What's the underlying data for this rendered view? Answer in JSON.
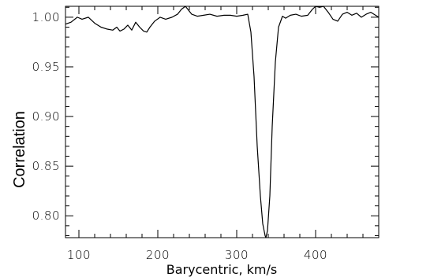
{
  "chart_data": {
    "type": "line",
    "title": "",
    "xlabel": "Barycentric, km/s",
    "ylabel": "Correlation",
    "xlim": [
      83,
      480
    ],
    "ylim": [
      0.778,
      1.011
    ],
    "x_ticks": [
      100,
      200,
      300,
      400
    ],
    "x_tick_labels": [
      "100",
      "200",
      "300",
      "400"
    ],
    "y_ticks": [
      0.8,
      0.85,
      0.9,
      0.95,
      1.0
    ],
    "y_tick_labels": [
      "0.80",
      "0.85",
      "0.90",
      "0.95",
      "1.00"
    ],
    "grid": false,
    "series": [
      {
        "x": [
          83,
          90,
          98,
          104,
          112,
          120,
          128,
          136,
          143,
          148,
          152,
          157,
          162,
          167,
          172,
          177,
          182,
          186,
          190,
          196,
          203,
          210,
          218,
          225,
          230,
          235,
          238,
          243,
          250,
          258,
          266,
          275,
          284,
          292,
          300,
          308,
          314,
          318,
          322,
          326,
          330,
          333,
          336,
          337,
          339,
          342,
          345,
          349,
          353,
          358,
          362,
          368,
          375,
          382,
          390,
          396,
          400,
          405,
          410,
          416,
          422,
          428,
          434,
          440,
          446,
          452,
          458,
          464,
          470,
          476,
          480
        ],
        "y": [
          0.993,
          0.995,
          1.0,
          0.998,
          1.0,
          0.994,
          0.99,
          0.988,
          0.987,
          0.99,
          0.986,
          0.988,
          0.992,
          0.987,
          0.995,
          0.99,
          0.986,
          0.985,
          0.99,
          0.996,
          1.0,
          0.998,
          1.0,
          1.003,
          1.008,
          1.011,
          1.008,
          1.003,
          1.001,
          1.002,
          1.003,
          1.001,
          1.002,
          1.002,
          1.001,
          1.002,
          1.003,
          0.985,
          0.94,
          0.87,
          0.82,
          0.792,
          0.78,
          0.778,
          0.785,
          0.82,
          0.89,
          0.955,
          0.99,
          1.001,
          0.999,
          1.002,
          1.003,
          1.001,
          1.002,
          1.008,
          1.011,
          1.01,
          1.011,
          1.005,
          0.998,
          0.996,
          1.003,
          1.005,
          1.002,
          1.004,
          1.0,
          1.003,
          1.005,
          1.002,
          1.0
        ]
      }
    ]
  }
}
